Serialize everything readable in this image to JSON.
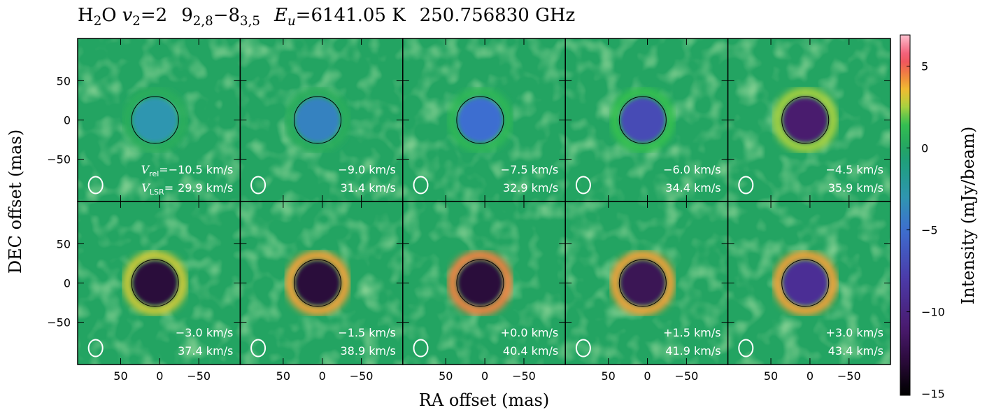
{
  "chart_data": {
    "type": "channel-map",
    "title_parts": [
      "H",
      "2",
      "O",
      "v",
      "2",
      "=2",
      "9",
      "2,8",
      "−8",
      "3,5",
      "E",
      "u",
      "=6141.05 K",
      "250.756830 GHz"
    ],
    "xlabel": "RA offset (mas)",
    "ylabel": "DEC offset (mas)",
    "colorbar_label": "Intensity (mJy/beam)",
    "xlim": [
      105,
      -103
    ],
    "ylim": [
      -104,
      104
    ],
    "xticks": [
      50,
      0,
      {
        "value": -50,
        "label": "−50"
      }
    ],
    "yticks": [
      {
        "value": -50,
        "label": "−50"
      },
      0,
      50
    ],
    "clim": [
      -15.1,
      6.9
    ],
    "cticks": [
      5,
      0,
      {
        "value": -5,
        "label": "−5"
      },
      {
        "value": -10,
        "label": "−10"
      },
      {
        "value": -15,
        "label": "−15"
      }
    ],
    "vrel_prefix": [
      "V",
      "rel",
      "="
    ],
    "vlsr_prefix": [
      "V",
      "LSR",
      "="
    ],
    "panels": [
      {
        "v_rel": "−10.5 km/s",
        "v_lsr": "29.9 km/s",
        "center": -3,
        "ring": 0.5
      },
      {
        "v_rel": "−9.0 km/s",
        "v_lsr": "31.4 km/s",
        "center": -4,
        "ring": 0.5
      },
      {
        "v_rel": "−7.5 km/s",
        "v_lsr": "32.9 km/s",
        "center": -5,
        "ring": 1
      },
      {
        "v_rel": "−6.0 km/s",
        "v_lsr": "34.4 km/s",
        "center": -7,
        "ring": 1.5
      },
      {
        "v_rel": "−4.5 km/s",
        "v_lsr": "35.9 km/s",
        "center": -11,
        "ring": 2.5
      },
      {
        "v_rel": "−3.0 km/s",
        "v_lsr": "37.4 km/s",
        "center": -13,
        "ring": 3
      },
      {
        "v_rel": "−1.5 km/s",
        "v_lsr": "38.9 km/s",
        "center": -13,
        "ring": 4
      },
      {
        "v_rel": "+0.0 km/s",
        "v_lsr": "40.4 km/s",
        "center": -13,
        "ring": 4.5
      },
      {
        "v_rel": "+1.5 km/s",
        "v_lsr": "41.9 km/s",
        "center": -12,
        "ring": 4
      },
      {
        "v_rel": "+3.0 km/s",
        "v_lsr": "43.4 km/s",
        "center": -9,
        "ring": 4
      }
    ]
  }
}
